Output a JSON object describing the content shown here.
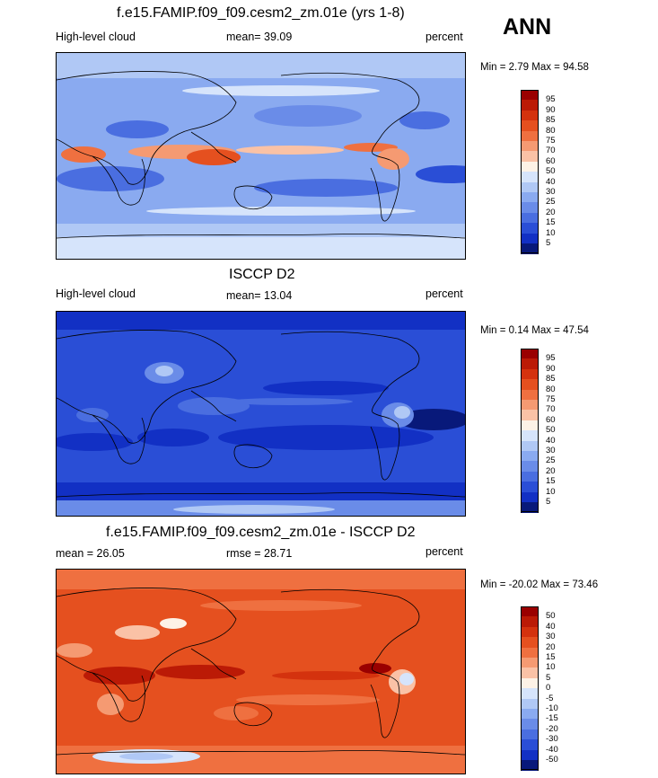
{
  "season_label": "ANN",
  "colors": {
    "ocean_blue": "#6e8fe6",
    "deep_blue": "#1638c9",
    "navy": "#08197a",
    "diff_red": "#e8401c",
    "coast": "#000000"
  },
  "panels": [
    {
      "title": "f.e15.FAMIP.f09_f09.cesm2_zm.01e (yrs 1-8)",
      "left_label": "High-level cloud",
      "center_label": "mean=  39.09",
      "right_label": "percent",
      "min_label": "Min =",
      "min_value": "2.79",
      "max_label": "Max =",
      "max_value": "94.58",
      "colorbar": {
        "ticks": [
          "95",
          "90",
          "85",
          "80",
          "75",
          "70",
          "60",
          "50",
          "40",
          "30",
          "25",
          "20",
          "15",
          "10",
          "5"
        ],
        "colors": [
          "#9a0000",
          "#bb1a06",
          "#d4320e",
          "#e5501f",
          "#ef7040",
          "#f59a72",
          "#fac2a6",
          "#fdf2e6",
          "#d6e4fb",
          "#b0c8f5",
          "#8aaaf0",
          "#6a8ce8",
          "#4a6ee0",
          "#2a4ed6",
          "#1230c4",
          "#08197a"
        ]
      },
      "field": "model"
    },
    {
      "title": "ISCCP D2",
      "left_label": "High-level cloud",
      "center_label": "mean=  13.04",
      "right_label": "percent",
      "min_label": "Min =",
      "min_value": "0.14",
      "max_label": "Max =",
      "max_value": "47.54",
      "colorbar": {
        "ticks": [
          "95",
          "90",
          "85",
          "80",
          "75",
          "70",
          "60",
          "50",
          "40",
          "30",
          "25",
          "20",
          "15",
          "10",
          "5"
        ],
        "colors": [
          "#9a0000",
          "#bb1a06",
          "#d4320e",
          "#e5501f",
          "#ef7040",
          "#f59a72",
          "#fac2a6",
          "#fdf2e6",
          "#d6e4fb",
          "#b0c8f5",
          "#8aaaf0",
          "#6a8ce8",
          "#4a6ee0",
          "#2a4ed6",
          "#1230c4",
          "#08197a"
        ]
      },
      "field": "obs"
    },
    {
      "title": "f.e15.FAMIP.f09_f09.cesm2_zm.01e - ISCCP D2",
      "left_label": "mean =  26.05",
      "center_label": "rmse =  28.71",
      "right_label": "percent",
      "min_label": "Min =",
      "min_value": "-20.02",
      "max_label": "Max =",
      "max_value": "73.46",
      "colorbar": {
        "ticks": [
          "50",
          "40",
          "30",
          "20",
          "15",
          "10",
          "5",
          "0",
          "-5",
          "-10",
          "-15",
          "-20",
          "-30",
          "-40",
          "-50"
        ],
        "colors": [
          "#9a0000",
          "#bb1a06",
          "#d4320e",
          "#e5501f",
          "#ef7040",
          "#f59a72",
          "#fac2a6",
          "#fdf2e6",
          "#d6e4fb",
          "#b0c8f5",
          "#8aaaf0",
          "#6a8ce8",
          "#4a6ee0",
          "#2a4ed6",
          "#1230c4",
          "#08197a"
        ]
      },
      "field": "diff"
    }
  ]
}
